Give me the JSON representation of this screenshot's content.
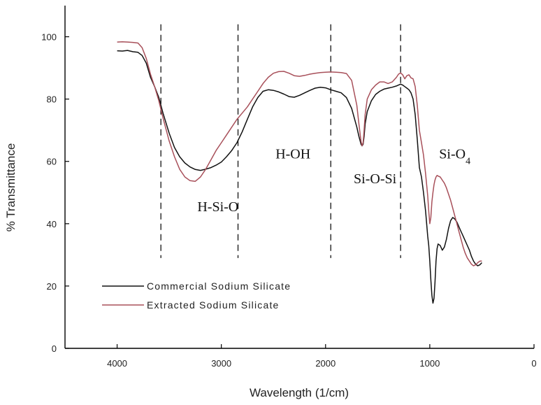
{
  "chart_data": {
    "type": "line",
    "xlabel": "Wavelength (1/cm)",
    "ylabel": "% Transmittance",
    "xlim": [
      4500,
      0
    ],
    "ylim": [
      0,
      110
    ],
    "x_reversed": true,
    "xticks": [
      4000,
      3000,
      2000,
      1000,
      0
    ],
    "yticks": [
      0,
      20,
      40,
      60,
      80,
      100
    ],
    "grid": false,
    "legend_position": "bottom-left",
    "vlines": [
      3580,
      2840,
      1950,
      1280
    ],
    "annotations": [
      {
        "text": "H-Si-O",
        "x": 3230,
        "y": 44
      },
      {
        "text": "H-OH",
        "x": 2480,
        "y": 61
      },
      {
        "text": "Si-O-Si",
        "x": 1730,
        "y": 53
      },
      {
        "text": "Si-O",
        "subscript": "4",
        "x": 910,
        "y": 61
      }
    ],
    "series": [
      {
        "name": "Commercial Sodium Silicate",
        "color": "#111111",
        "x": [
          4000,
          3950,
          3900,
          3850,
          3800,
          3760,
          3720,
          3680,
          3640,
          3600,
          3560,
          3500,
          3450,
          3400,
          3350,
          3300,
          3250,
          3200,
          3150,
          3100,
          3050,
          3000,
          2950,
          2900,
          2850,
          2800,
          2750,
          2700,
          2650,
          2600,
          2550,
          2500,
          2450,
          2400,
          2350,
          2300,
          2250,
          2200,
          2150,
          2100,
          2050,
          2000,
          1950,
          1900,
          1850,
          1800,
          1750,
          1700,
          1680,
          1660,
          1650,
          1640,
          1630,
          1620,
          1600,
          1560,
          1520,
          1480,
          1440,
          1400,
          1360,
          1320,
          1300,
          1280,
          1260,
          1240,
          1220,
          1200,
          1180,
          1160,
          1140,
          1120,
          1100,
          1080,
          1060,
          1040,
          1020,
          1010,
          1000,
          990,
          980,
          970,
          960,
          950,
          940,
          930,
          920,
          900,
          880,
          860,
          840,
          820,
          800,
          780,
          760,
          740,
          720,
          700,
          680,
          660,
          640,
          620,
          600,
          580,
          560,
          540,
          520,
          500
        ],
        "y": [
          95.5,
          95.4,
          95.6,
          95.2,
          95.0,
          94.0,
          91.5,
          87.0,
          84.0,
          80.5,
          75.5,
          69.0,
          64.5,
          61.5,
          59.5,
          58.2,
          57.4,
          57.1,
          57.5,
          58.0,
          58.8,
          59.8,
          61.5,
          63.5,
          66.0,
          69.5,
          73.5,
          77.5,
          80.5,
          82.5,
          83.0,
          82.8,
          82.3,
          81.6,
          80.8,
          80.6,
          81.2,
          82.0,
          82.8,
          83.5,
          83.8,
          83.6,
          83.0,
          82.5,
          82.0,
          80.5,
          77.0,
          71.0,
          68.0,
          65.5,
          65.0,
          65.5,
          68.0,
          72.0,
          76.0,
          79.5,
          81.5,
          82.5,
          83.2,
          83.5,
          83.8,
          84.2,
          84.5,
          84.8,
          84.5,
          84.0,
          83.5,
          83.0,
          82.0,
          80.0,
          75.0,
          67.0,
          58.0,
          55.0,
          50.0,
          44.0,
          36.0,
          33.0,
          28.0,
          22.0,
          17.0,
          14.5,
          16.0,
          21.0,
          28.0,
          32.0,
          33.5,
          33.0,
          31.5,
          32.5,
          35.0,
          38.5,
          41.0,
          42.0,
          41.5,
          40.5,
          39.0,
          37.5,
          36.0,
          34.5,
          33.0,
          31.5,
          29.5,
          28.0,
          27.0,
          26.5,
          26.8,
          27.5
        ]
      },
      {
        "name": "Extracted Sodium Silicate",
        "color": "#a8505a",
        "x": [
          4000,
          3950,
          3900,
          3850,
          3800,
          3760,
          3720,
          3680,
          3640,
          3600,
          3560,
          3500,
          3450,
          3400,
          3350,
          3300,
          3250,
          3200,
          3150,
          3100,
          3050,
          3000,
          2950,
          2900,
          2850,
          2800,
          2750,
          2700,
          2650,
          2600,
          2550,
          2500,
          2450,
          2400,
          2350,
          2300,
          2250,
          2200,
          2150,
          2100,
          2050,
          2000,
          1950,
          1900,
          1850,
          1800,
          1750,
          1700,
          1680,
          1660,
          1650,
          1640,
          1630,
          1620,
          1600,
          1560,
          1520,
          1480,
          1440,
          1400,
          1360,
          1320,
          1300,
          1280,
          1260,
          1240,
          1220,
          1200,
          1180,
          1160,
          1140,
          1120,
          1100,
          1080,
          1060,
          1040,
          1020,
          1010,
          1000,
          990,
          980,
          970,
          960,
          950,
          940,
          930,
          920,
          900,
          880,
          860,
          840,
          820,
          800,
          780,
          760,
          740,
          720,
          700,
          680,
          660,
          640,
          620,
          600,
          580,
          560,
          540,
          520,
          500
        ],
        "y": [
          98.3,
          98.4,
          98.3,
          98.2,
          98.0,
          96.5,
          93.0,
          88.0,
          84.0,
          79.5,
          74.0,
          66.5,
          61.5,
          57.5,
          55.0,
          53.8,
          53.6,
          55.0,
          57.5,
          60.5,
          63.5,
          66.0,
          68.5,
          71.0,
          73.5,
          75.5,
          77.5,
          80.0,
          82.5,
          85.0,
          87.0,
          88.3,
          88.8,
          88.9,
          88.3,
          87.5,
          87.3,
          87.6,
          88.0,
          88.3,
          88.5,
          88.6,
          88.7,
          88.6,
          88.5,
          88.2,
          86.0,
          78.0,
          72.0,
          66.5,
          65.0,
          66.0,
          70.0,
          75.0,
          80.0,
          83.0,
          84.5,
          85.5,
          85.5,
          85.0,
          85.5,
          87.0,
          88.0,
          88.4,
          87.8,
          86.5,
          87.5,
          87.8,
          86.8,
          86.5,
          84.0,
          78.0,
          70.0,
          66.0,
          62.0,
          56.0,
          49.0,
          44.0,
          40.0,
          42.0,
          47.0,
          50.0,
          52.5,
          54.0,
          55.0,
          55.5,
          55.3,
          55.0,
          54.0,
          53.0,
          51.5,
          49.5,
          47.5,
          45.0,
          42.5,
          40.0,
          37.5,
          35.0,
          32.5,
          30.5,
          29.0,
          28.0,
          27.0,
          26.5,
          26.8,
          27.5,
          28.0,
          28.0
        ]
      }
    ]
  }
}
